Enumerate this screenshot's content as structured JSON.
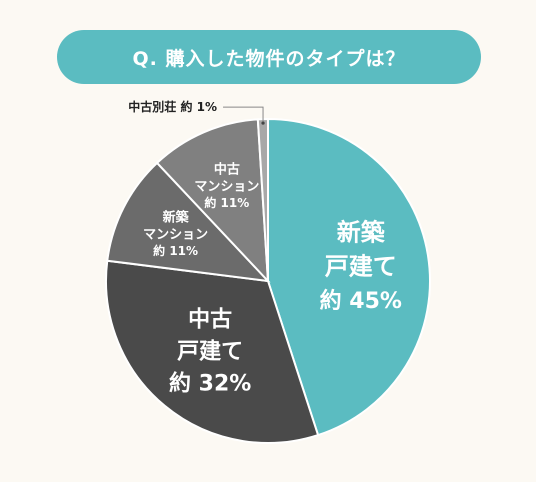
{
  "title": "Q. 購入した物件のタイプは？",
  "chart_data": {
    "type": "pie",
    "title": "Q. 購入した物件のタイプは？",
    "slices": [
      {
        "label": [
          "新築",
          "戸建て"
        ],
        "value_text": "約 45%",
        "value": 45,
        "color": "#5bbcc1"
      },
      {
        "label": [
          "中古",
          "戸建て"
        ],
        "value_text": "約 32%",
        "value": 32,
        "color": "#4a4a4a"
      },
      {
        "label": [
          "新築",
          "マンション"
        ],
        "value_text": "約 11%",
        "value": 11,
        "color": "#6b6b6b"
      },
      {
        "label": [
          "中古",
          "マンション"
        ],
        "value_text": "約 11%",
        "value": 11,
        "color": "#808080"
      },
      {
        "label": [
          "中古別荘"
        ],
        "value_text": "約 1%",
        "value": 1,
        "color": "#a8a8a8"
      }
    ]
  }
}
